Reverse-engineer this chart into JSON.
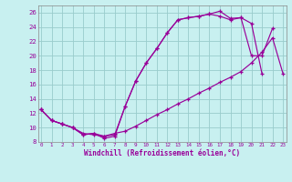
{
  "bg_color": "#c8f0f0",
  "grid_color": "#99cccc",
  "line_color": "#990099",
  "xlabel": "Windchill (Refroidissement éolien,°C)",
  "xlim": [
    -0.3,
    23.3
  ],
  "ylim": [
    8,
    27
  ],
  "yticks": [
    8,
    10,
    12,
    14,
    16,
    18,
    20,
    22,
    24,
    26
  ],
  "xticks": [
    0,
    1,
    2,
    3,
    4,
    5,
    6,
    7,
    8,
    9,
    10,
    11,
    12,
    13,
    14,
    15,
    16,
    17,
    18,
    19,
    20,
    21,
    22,
    23
  ],
  "curve1_x": [
    0,
    1,
    2,
    3,
    4,
    5,
    6,
    7,
    8,
    9,
    10,
    11,
    12,
    13,
    14,
    15,
    16,
    17,
    18,
    19,
    20,
    21,
    22
  ],
  "curve1_y": [
    12.5,
    11.0,
    10.5,
    10.0,
    9.0,
    9.2,
    8.5,
    8.8,
    13.0,
    16.5,
    19.0,
    21.0,
    23.2,
    25.0,
    25.3,
    25.5,
    25.8,
    26.2,
    25.2,
    25.3,
    20.0,
    20.0,
    23.8
  ],
  "curve2_x": [
    0,
    1,
    2,
    3,
    4,
    5,
    6,
    7,
    8,
    9,
    10,
    11,
    12,
    13,
    14,
    15,
    16,
    17,
    18,
    19,
    20,
    21,
    22,
    23
  ],
  "curve2_y": [
    12.5,
    11.0,
    10.5,
    10.0,
    9.2,
    9.0,
    8.8,
    9.2,
    9.5,
    10.2,
    11.0,
    11.8,
    12.5,
    13.3,
    14.0,
    14.8,
    15.5,
    16.3,
    17.0,
    17.8,
    19.0,
    20.5,
    22.5,
    17.5
  ],
  "curve3_x": [
    0,
    1,
    2,
    3,
    4,
    5,
    6,
    7,
    8,
    9,
    10,
    11,
    12,
    13,
    14,
    15,
    16,
    17,
    18,
    19,
    20,
    21,
    22,
    23
  ],
  "curve3_y": [
    12.5,
    11.0,
    10.5,
    10.0,
    9.0,
    9.2,
    8.8,
    9.0,
    13.0,
    16.5,
    19.0,
    21.0,
    23.2,
    25.0,
    25.3,
    25.5,
    25.8,
    25.5,
    25.0,
    25.3,
    24.5,
    17.5,
    null,
    null
  ]
}
